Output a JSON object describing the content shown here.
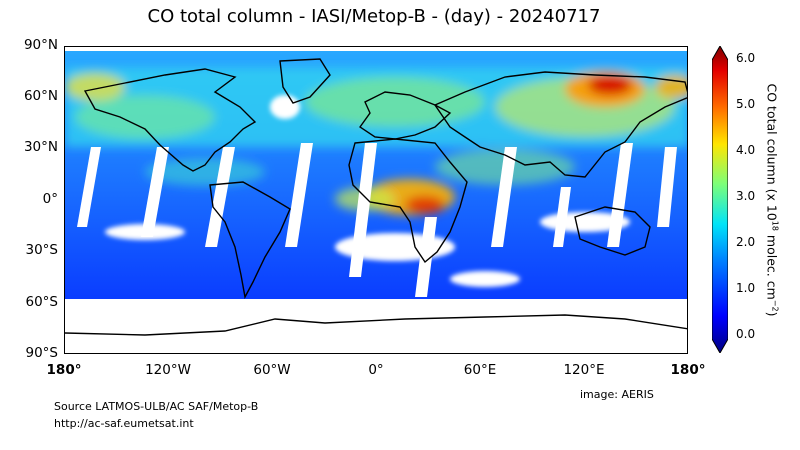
{
  "title": "CO total column - IASI/Metop-B - (day) - 20240717",
  "lat_labels": [
    "90°N",
    "60°N",
    "30°N",
    "0°",
    "30°S",
    "60°S",
    "90°S"
  ],
  "lon_labels": [
    "180°",
    "120°W",
    "60°W",
    "0°",
    "60°E",
    "120°E",
    "180°"
  ],
  "colorbar": {
    "ticks": [
      "0.0",
      "1.0",
      "2.0",
      "3.0",
      "4.0",
      "5.0",
      "6.0"
    ],
    "label_main": "CO total column (x 10",
    "label_sup1": "18",
    "label_mid": " molec. cm",
    "label_sup2": "−2",
    "label_end": ")",
    "colors": [
      "#00007f",
      "#0000ff",
      "#0080ff",
      "#00e4f8",
      "#7cff79",
      "#ffe600",
      "#ff6d00",
      "#e40000",
      "#7f0000"
    ],
    "range": [
      0,
      6
    ]
  },
  "source_line1": "Source LATMOS-ULB/AC SAF/Metop-B",
  "source_line2": "http://ac-saf.eumetsat.int",
  "credit": "image: AERIS"
}
